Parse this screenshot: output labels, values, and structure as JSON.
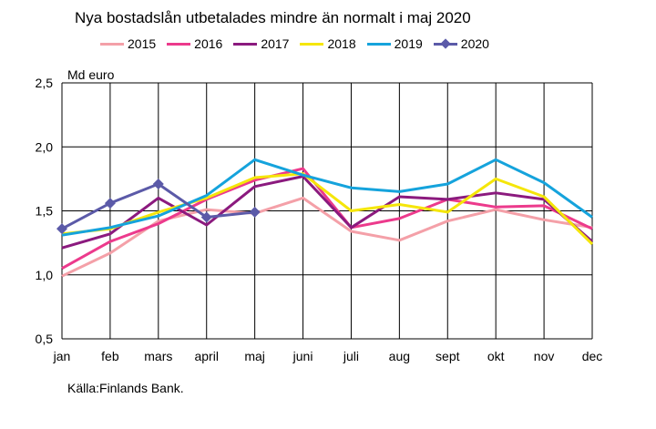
{
  "title": "Nya bostadslån utbetalades mindre än normalt i maj 2020",
  "source": "Källa:Finlands Bank.",
  "chart_data": {
    "type": "line",
    "title": "Nya bostadslån utbetalades mindre än normalt i maj 2020",
    "ylabel": "Md euro",
    "xlabel": "",
    "ylim": [
      0.5,
      2.5
    ],
    "yticks": [
      "0,5",
      "1,0",
      "1,5",
      "2,0",
      "2,5"
    ],
    "ytick_values": [
      0.5,
      1.0,
      1.5,
      2.0,
      2.5
    ],
    "categories": [
      "jan",
      "feb",
      "mars",
      "april",
      "maj",
      "juni",
      "juli",
      "aug",
      "sept",
      "okt",
      "nov",
      "dec"
    ],
    "grid": true,
    "legend_position": "top",
    "series": [
      {
        "name": "2015",
        "color": "#f4a0a8",
        "marker": false,
        "values": [
          0.99,
          1.17,
          1.42,
          1.51,
          1.48,
          1.6,
          1.34,
          1.27,
          1.42,
          1.51,
          1.43,
          1.37
        ]
      },
      {
        "name": "2016",
        "color": "#ec3a8c",
        "marker": false,
        "values": [
          1.05,
          1.26,
          1.4,
          1.59,
          1.74,
          1.83,
          1.37,
          1.44,
          1.59,
          1.53,
          1.54,
          1.36
        ]
      },
      {
        "name": "2017",
        "color": "#8b1a7e",
        "marker": false,
        "values": [
          1.21,
          1.32,
          1.6,
          1.39,
          1.69,
          1.77,
          1.37,
          1.61,
          1.59,
          1.64,
          1.59,
          1.26
        ]
      },
      {
        "name": "2018",
        "color": "#f5e60a",
        "marker": false,
        "values": [
          1.32,
          1.36,
          1.49,
          1.6,
          1.76,
          1.79,
          1.5,
          1.55,
          1.49,
          1.75,
          1.61,
          1.24
        ]
      },
      {
        "name": "2019",
        "color": "#15a3dc",
        "marker": false,
        "values": [
          1.31,
          1.37,
          1.46,
          1.62,
          1.9,
          1.78,
          1.68,
          1.65,
          1.71,
          1.9,
          1.72,
          1.45
        ]
      },
      {
        "name": "2020",
        "color": "#5b5aa8",
        "marker": true,
        "values": [
          1.36,
          1.56,
          1.71,
          1.45,
          1.49,
          null,
          null,
          null,
          null,
          null,
          null,
          null
        ]
      }
    ]
  }
}
